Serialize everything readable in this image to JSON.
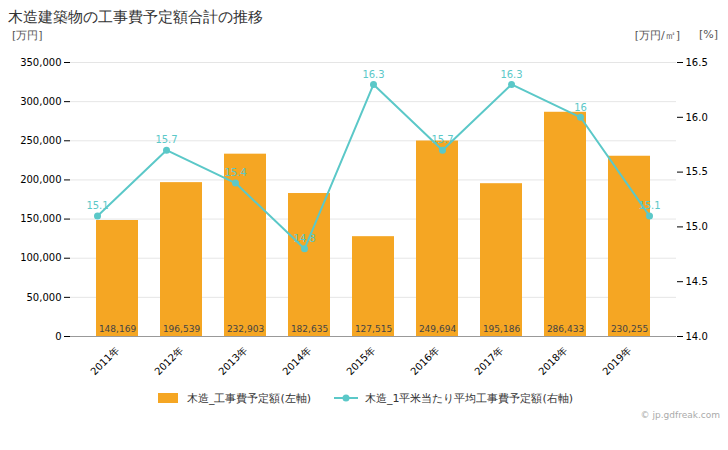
{
  "chart_data": {
    "type": "bar",
    "title": "木造建築物の工事費予定額合計の推移",
    "categories": [
      "2011年",
      "2012年",
      "2013年",
      "2014年",
      "2015年",
      "2016年",
      "2017年",
      "2018年",
      "2019年"
    ],
    "series": [
      {
        "name": "木造_工事費予定額(左軸)",
        "type": "bar",
        "color": "#F5A623",
        "values": [
          148169,
          196539,
          232903,
          182635,
          127515,
          249694,
          195186,
          286433,
          230255
        ],
        "value_labels": [
          "148,169",
          "196,539",
          "232,903",
          "182,635",
          "127,515",
          "249,694",
          "195,186",
          "286,433",
          "230,255"
        ]
      },
      {
        "name": "木造_1平米当たり平均工事費予定額(右軸)",
        "type": "line",
        "axis": "y2",
        "color": "#5BC8C8",
        "marker": "circle",
        "values": [
          15.1,
          15.7,
          15.4,
          14.8,
          16.3,
          15.7,
          16.3,
          16.0,
          15.1
        ]
      }
    ],
    "ylabel": "[万円]",
    "y2label": "[万円/㎡]",
    "annotations": [
      "[%]",
      "© jp.gdfreak.com"
    ],
    "ylim": [
      0,
      350000
    ],
    "yticks": [
      0,
      {
        "value": 50000,
        "label": "50,000"
      },
      {
        "value": 100000,
        "label": "100,000"
      },
      {
        "value": 150000,
        "label": "150,000"
      },
      {
        "value": 200000,
        "label": "200,000"
      },
      {
        "value": 250000,
        "label": "250,000"
      },
      {
        "value": 300000,
        "label": "300,000"
      },
      {
        "value": 350000,
        "label": "350,000"
      }
    ],
    "y2lim": [
      14.0,
      16.5
    ],
    "y2ticks": [
      {
        "value": 14.0,
        "label": "14.0"
      },
      14.5,
      {
        "value": 15.0,
        "label": "15.0"
      },
      15.5,
      {
        "value": 16.0,
        "label": "16.0"
      },
      16.5
    ],
    "grid": true,
    "legend": "bottom",
    "data_labels": true
  }
}
